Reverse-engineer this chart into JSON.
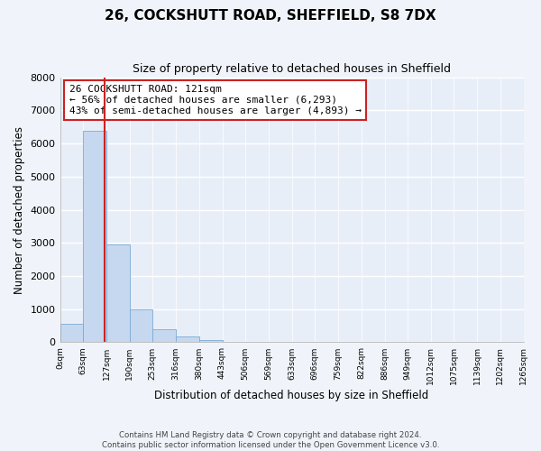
{
  "title": "26, COCKSHUTT ROAD, SHEFFIELD, S8 7DX",
  "subtitle": "Size of property relative to detached houses in Sheffield",
  "xlabel": "Distribution of detached houses by size in Sheffield",
  "ylabel": "Number of detached properties",
  "bar_edges": [
    0,
    63,
    127,
    190,
    253,
    316,
    380,
    443,
    506,
    569,
    633,
    696,
    759,
    822,
    886,
    949,
    1012,
    1075,
    1139,
    1202,
    1265
  ],
  "bar_heights": [
    560,
    6380,
    2940,
    980,
    380,
    170,
    80,
    0,
    0,
    0,
    0,
    0,
    0,
    0,
    0,
    0,
    0,
    0,
    0,
    0
  ],
  "property_line_x": 121,
  "bar_color_normal": "#c5d8f0",
  "bar_color_edge": "#7baad4",
  "line_color": "#cc2222",
  "annotation_text": "26 COCKSHUTT ROAD: 121sqm\n← 56% of detached houses are smaller (6,293)\n43% of semi-detached houses are larger (4,893) →",
  "annotation_box_facecolor": "#ffffff",
  "annotation_box_edgecolor": "#cc2222",
  "ylim": [
    0,
    8000
  ],
  "tick_labels": [
    "0sqm",
    "63sqm",
    "127sqm",
    "190sqm",
    "253sqm",
    "316sqm",
    "380sqm",
    "443sqm",
    "506sqm",
    "569sqm",
    "633sqm",
    "696sqm",
    "759sqm",
    "822sqm",
    "886sqm",
    "949sqm",
    "1012sqm",
    "1075sqm",
    "1139sqm",
    "1202sqm",
    "1265sqm"
  ],
  "footer_text": "Contains HM Land Registry data © Crown copyright and database right 2024.\nContains public sector information licensed under the Open Government Licence v3.0.",
  "bg_color": "#f0f4fa",
  "plot_bg_color": "#e8eef8",
  "title_fontsize": 11,
  "subtitle_fontsize": 9,
  "annotation_fontsize": 8
}
